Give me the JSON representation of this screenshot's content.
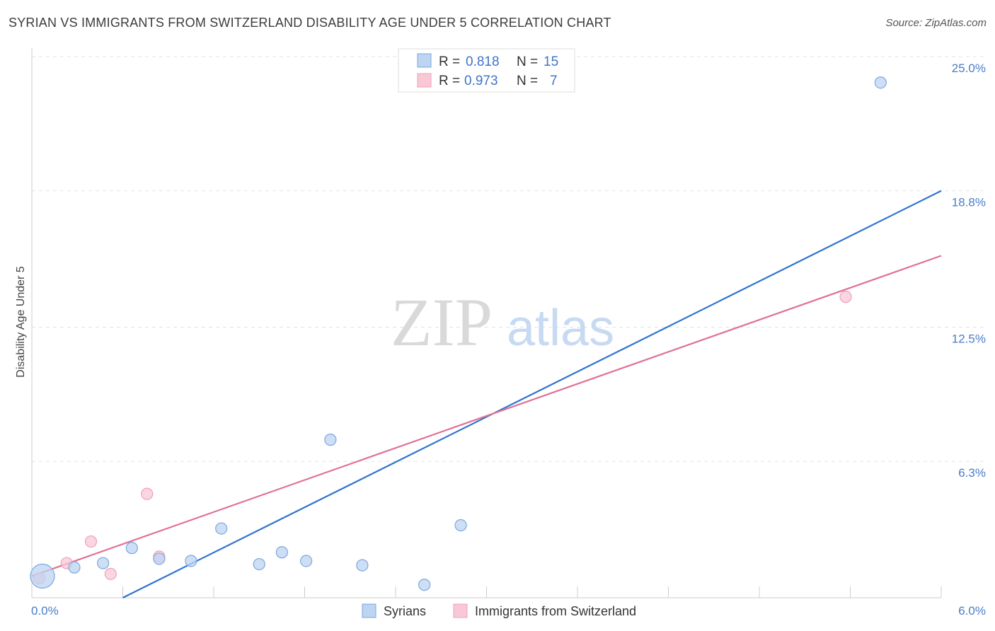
{
  "title": "SYRIAN VS IMMIGRANTS FROM SWITZERLAND DISABILITY AGE UNDER 5 CORRELATION CHART",
  "source": "Source: ZipAtlas.com",
  "watermark": {
    "zip": "ZIP",
    "atlas": "atlas"
  },
  "legend_box": {
    "rows": [
      {
        "r_label": "R =",
        "r_value": "0.818",
        "n_label": "N =",
        "n_value": "15"
      },
      {
        "r_label": "R =",
        "r_value": "0.973",
        "n_label": "N =",
        "n_value": "7"
      }
    ]
  },
  "chart_data": {
    "type": "scatter",
    "title": "SYRIAN VS IMMIGRANTS FROM SWITZERLAND DISABILITY AGE UNDER 5 CORRELATION CHART",
    "xlabel": "",
    "ylabel": "Disability Age Under 5",
    "xlim": [
      0,
      6
    ],
    "ylim": [
      0,
      25
    ],
    "x_tick_labels": [
      "0.0%",
      "6.0%"
    ],
    "y_ticks": [
      6.3,
      12.5,
      18.8,
      25.0
    ],
    "y_tick_labels": [
      "6.3%",
      "12.5%",
      "18.8%",
      "25.0%"
    ],
    "grid": true,
    "legend_position": "bottom",
    "series": [
      {
        "name": "Syrians",
        "color": "#7aa7e0",
        "fill": "#bdd4f2",
        "line_color": "#2f74cf",
        "points": [
          {
            "x": 0.07,
            "y": 1.0,
            "size": "large"
          },
          {
            "x": 0.28,
            "y": 1.4
          },
          {
            "x": 0.47,
            "y": 1.6
          },
          {
            "x": 0.66,
            "y": 2.3
          },
          {
            "x": 0.84,
            "y": 1.8
          },
          {
            "x": 1.05,
            "y": 1.7
          },
          {
            "x": 1.25,
            "y": 3.2
          },
          {
            "x": 1.5,
            "y": 1.55
          },
          {
            "x": 1.65,
            "y": 2.1
          },
          {
            "x": 1.81,
            "y": 1.7
          },
          {
            "x": 1.97,
            "y": 7.3
          },
          {
            "x": 2.18,
            "y": 1.5
          },
          {
            "x": 2.59,
            "y": 0.6
          },
          {
            "x": 2.83,
            "y": 3.35
          },
          {
            "x": 5.6,
            "y": 23.8
          }
        ],
        "trend": {
          "x": [
            0.6,
            6.0
          ],
          "y": [
            0.0,
            18.8
          ]
        }
      },
      {
        "name": "Immigrants from Switzerland",
        "color": "#f0a0b8",
        "fill": "#f8c8d6",
        "line_color": "#e07096",
        "points": [
          {
            "x": 0.05,
            "y": 0.9
          },
          {
            "x": 0.23,
            "y": 1.6
          },
          {
            "x": 0.39,
            "y": 2.6
          },
          {
            "x": 0.52,
            "y": 1.1
          },
          {
            "x": 0.76,
            "y": 4.8
          },
          {
            "x": 0.84,
            "y": 1.9
          },
          {
            "x": 5.37,
            "y": 13.9
          }
        ],
        "trend": {
          "x": [
            0.0,
            6.0
          ],
          "y": [
            1.0,
            15.8
          ]
        }
      }
    ]
  }
}
